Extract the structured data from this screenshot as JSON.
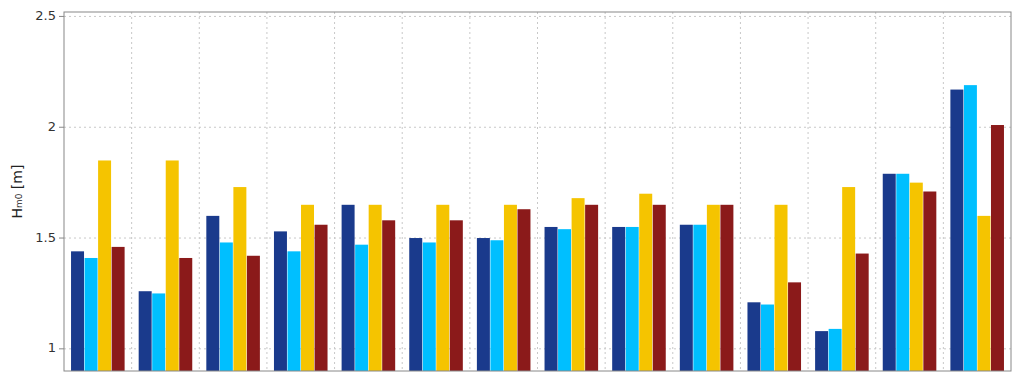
{
  "chart_data": {
    "type": "bar",
    "ylabel": "Hₘ₀ [m]",
    "categories": [
      null,
      null,
      null,
      null,
      null,
      null,
      null,
      null,
      null,
      null,
      null,
      null,
      null,
      null
    ],
    "series": [
      {
        "color": "#1a3a8c",
        "values": [
          1.44,
          1.26,
          1.6,
          1.53,
          1.65,
          1.5,
          1.5,
          1.55,
          1.55,
          1.56,
          1.21,
          1.08,
          1.79,
          2.17
        ]
      },
      {
        "color": "#00bfff",
        "values": [
          1.41,
          1.25,
          1.48,
          1.44,
          1.47,
          1.48,
          1.49,
          1.54,
          1.55,
          1.56,
          1.2,
          1.09,
          1.79,
          2.19
        ]
      },
      {
        "color": "#f5c400",
        "values": [
          1.85,
          1.85,
          1.73,
          1.65,
          1.65,
          1.65,
          1.65,
          1.68,
          1.7,
          1.65,
          1.65,
          1.73,
          1.75,
          1.6
        ]
      },
      {
        "color": "#8b1a1a",
        "values": [
          1.46,
          1.41,
          1.42,
          1.56,
          1.58,
          1.58,
          1.63,
          1.65,
          1.65,
          1.65,
          1.3,
          1.43,
          1.71,
          2.01
        ]
      }
    ],
    "ylim": [
      0.9,
      2.52
    ],
    "yticks": [
      1,
      1.5,
      2,
      2.5
    ],
    "grid": true,
    "tick_labels": "y"
  }
}
